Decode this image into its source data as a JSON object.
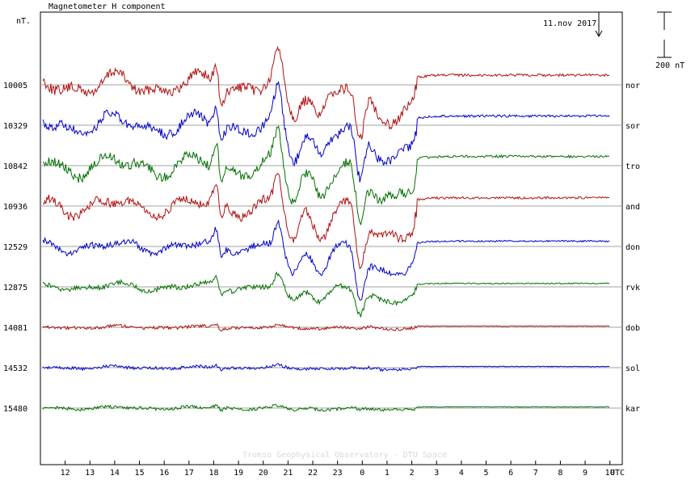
{
  "chart_data": {
    "type": "line",
    "title": "Magnetometer H component",
    "ylabel": "nT.",
    "date_label": "11.nov 2017",
    "scale_label": "200 nT",
    "xlabel": "UTC",
    "x_ticks": [
      "12",
      "13",
      "14",
      "15",
      "16",
      "17",
      "18",
      "19",
      "20",
      "21",
      "22",
      "23",
      "0",
      "1",
      "2",
      "3",
      "4",
      "5",
      "6",
      "7",
      "8",
      "9",
      "10"
    ],
    "x_range_hours": [
      11,
      34.5
    ],
    "scale_bar_nT": 200,
    "watermark": "Tromso Geophysical Observatory - DTU Space",
    "series": [
      {
        "name": "nor",
        "baseline": "10005",
        "color": "#b01010",
        "activity": 1.0,
        "storm": 1.0
      },
      {
        "name": "sor",
        "baseline": "10329",
        "color": "#0000c8",
        "activity": 0.95,
        "storm": 1.0
      },
      {
        "name": "tro",
        "baseline": "10842",
        "color": "#007000",
        "activity": 0.95,
        "storm": 1.0
      },
      {
        "name": "and",
        "baseline": "10936",
        "color": "#b01010",
        "activity": 0.85,
        "storm": 1.0
      },
      {
        "name": "don",
        "baseline": "12529",
        "color": "#0000c8",
        "activity": 0.55,
        "storm": 0.85
      },
      {
        "name": "rvk",
        "baseline": "12875",
        "color": "#007000",
        "activity": 0.35,
        "storm": 0.45
      },
      {
        "name": "dob",
        "baseline": "14081",
        "color": "#b01010",
        "activity": 0.12,
        "storm": 0.04
      },
      {
        "name": "sol",
        "baseline": "14532",
        "color": "#0000c8",
        "activity": 0.12,
        "storm": 0.04
      },
      {
        "name": "kar",
        "baseline": "15480",
        "color": "#007000",
        "activity": 0.12,
        "storm": 0.04
      }
    ]
  }
}
